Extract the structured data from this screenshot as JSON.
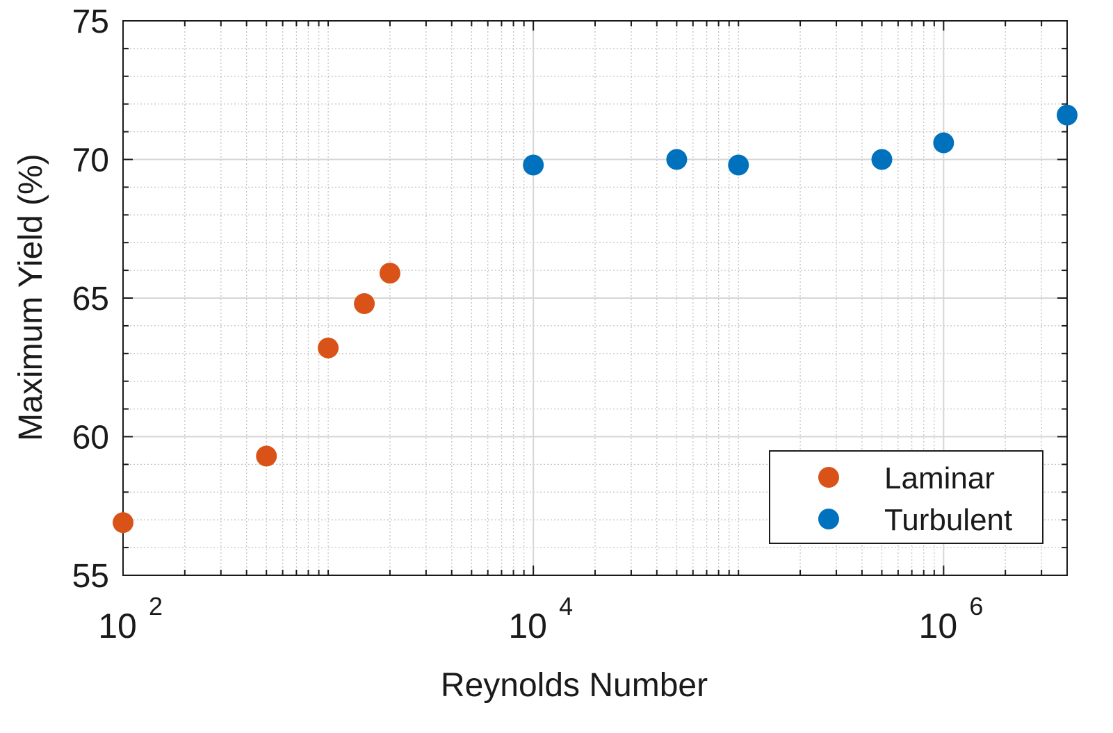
{
  "chart_data": {
    "type": "scatter",
    "title": "",
    "xlabel": "Reynolds Number",
    "ylabel": "Maximum Yield (%)",
    "xscale": "log",
    "xlim": [
      100,
      4000000
    ],
    "ylim": [
      55,
      75
    ],
    "grid": true,
    "legend_position": "bottom-right",
    "x_ticks": [
      {
        "value": 100,
        "base": "10",
        "exp": "2"
      },
      {
        "value": 10000,
        "base": "10",
        "exp": "4"
      },
      {
        "value": 1000000,
        "base": "10",
        "exp": "6"
      }
    ],
    "y_ticks": [
      {
        "value": 55,
        "label": "55"
      },
      {
        "value": 60,
        "label": "60"
      },
      {
        "value": 65,
        "label": "65"
      },
      {
        "value": 70,
        "label": "70"
      },
      {
        "value": 75,
        "label": "75"
      }
    ],
    "series": [
      {
        "name": "Laminar",
        "color": "#D95319",
        "points": [
          {
            "x": 100,
            "y": 56.9
          },
          {
            "x": 500,
            "y": 59.3
          },
          {
            "x": 1000,
            "y": 63.2
          },
          {
            "x": 1500,
            "y": 64.8
          },
          {
            "x": 2000,
            "y": 65.9
          }
        ]
      },
      {
        "name": "Turbulent",
        "color": "#0072BD",
        "points": [
          {
            "x": 10000,
            "y": 69.8
          },
          {
            "x": 50000,
            "y": 70.0
          },
          {
            "x": 100000,
            "y": 69.8
          },
          {
            "x": 500000,
            "y": 70.0
          },
          {
            "x": 1000000,
            "y": 70.6
          },
          {
            "x": 4000000,
            "y": 71.6
          }
        ]
      }
    ]
  }
}
